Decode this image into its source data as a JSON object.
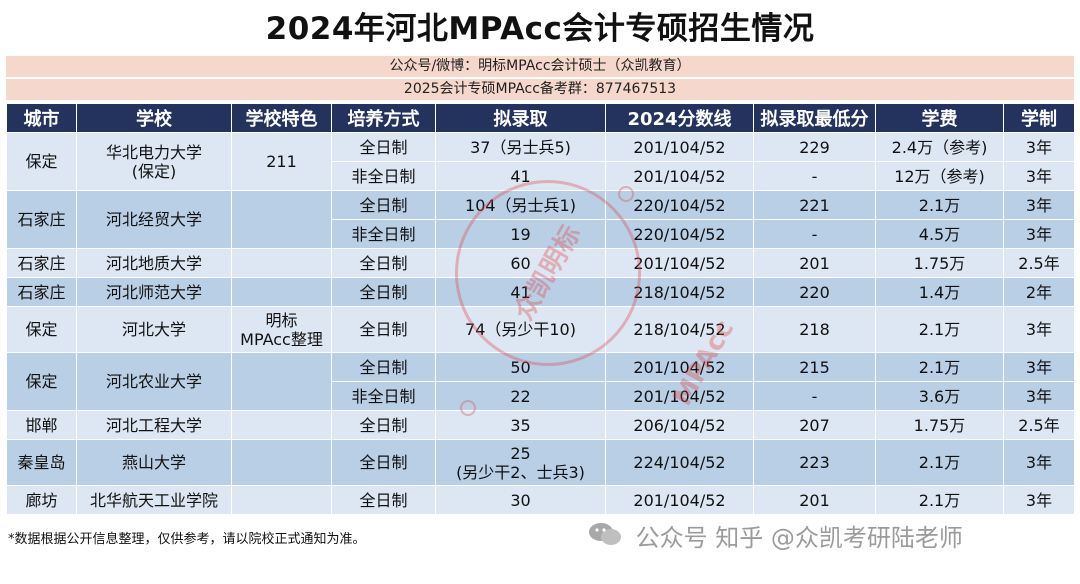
{
  "header": {
    "title": "2024年河北MPAcc会计专硕招生情况",
    "info_line1": "公众号/微博：明标MPAcc会计硕士（众凯教育）",
    "info_line2": "2025会计专硕MPAcc备考群：877467513"
  },
  "table": {
    "columns": [
      "城市",
      "学校",
      "学校特色",
      "培养方式",
      "拟录取",
      "2024分数线",
      "拟录取最低分",
      "学费",
      "学制"
    ],
    "rows": [
      {
        "city": "保定",
        "school": "华北电力大学（保定）",
        "feature": "211",
        "mode": "全日制",
        "admit": "37（另士兵5)",
        "score": "201/104/52",
        "min": "229",
        "fee": "2.4万（参考)",
        "years": "3年"
      },
      {
        "mode": "非全日制",
        "admit": "41",
        "score": "201/104/52",
        "min": "-",
        "fee": "12万（参考)",
        "years": "3年"
      },
      {
        "city": "石家庄",
        "school": "河北经贸大学",
        "mode": "全日制",
        "admit": "104（另士兵1)",
        "score": "220/104/52",
        "min": "221",
        "fee": "2.1万",
        "years": "3年"
      },
      {
        "mode": "非全日制",
        "admit": "19",
        "score": "220/104/52",
        "min": "-",
        "fee": "4.5万",
        "years": "3年"
      },
      {
        "city": "石家庄",
        "school": "河北地质大学",
        "mode": "全日制",
        "admit": "60",
        "score": "201/104/52",
        "min": "201",
        "fee": "1.75万",
        "years": "2.5年"
      },
      {
        "city": "石家庄",
        "school": "河北师范大学",
        "mode": "全日制",
        "admit": "41",
        "score": "218/104/52",
        "min": "220",
        "fee": "1.4万",
        "years": "2年"
      },
      {
        "city": "保定",
        "school": "河北大学",
        "feature": "明标MPAcc整理",
        "mode": "全日制",
        "admit": "74（另少干10)",
        "score": "218/104/52",
        "min": "218",
        "fee": "2.1万",
        "years": "3年"
      },
      {
        "city": "保定",
        "school": "河北农业大学",
        "mode": "全日制",
        "admit": "50",
        "score": "201/104/52",
        "min": "215",
        "fee": "2.1万",
        "years": "3年"
      },
      {
        "mode": "非全日制",
        "admit": "22",
        "score": "201/104/52",
        "min": "-",
        "fee": "3.6万",
        "years": "3年"
      },
      {
        "city": "邯郸",
        "school": "河北工程大学",
        "mode": "全日制",
        "admit": "35",
        "score": "206/104/52",
        "min": "207",
        "fee": "1.75万",
        "years": "2.5年"
      },
      {
        "city": "秦皇岛",
        "school": "燕山大学",
        "mode": "全日制",
        "admit_line1": "25",
        "admit_line2": "(另少干2、士兵3)",
        "score": "224/104/52",
        "min": "223",
        "fee": "2.1万",
        "years": "3年"
      },
      {
        "city": "廊坊",
        "school": "北华航天工业学院",
        "mode": "全日制",
        "admit": "30",
        "score": "201/104/52",
        "min": "201",
        "fee": "2.1万",
        "years": "3年"
      }
    ]
  },
  "school_line1": "华北电力大学",
  "school_line2": "(保定)",
  "feature_line1": "明标",
  "feature_line2": "MPAcc整理",
  "footnote": "*数据根据公开信息整理，仅供参考，请以院校正式通知为准。",
  "watermark": "公众号 知乎 @众凯考研陆老师",
  "stamp_text": "众凯明标MPAcc",
  "colors": {
    "header_bg": "#24325e",
    "band_light": "#dde7f3",
    "band_dark": "#b9cfe6",
    "info_bg": "#f6d7cb"
  }
}
